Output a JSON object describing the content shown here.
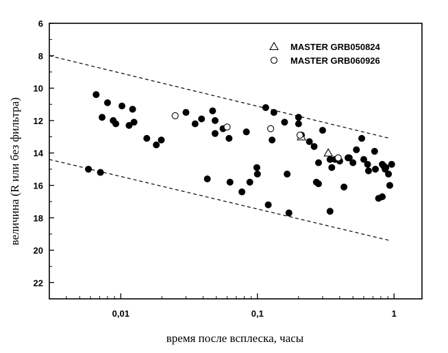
{
  "chart_data": {
    "type": "scatter",
    "title": "",
    "xlabel": "время после всплеска, часы",
    "ylabel": "величина (R или без фильтра)",
    "x_scale": "log",
    "xlim": [
      0.003,
      1.6
    ],
    "ylim": [
      6,
      23
    ],
    "y_inverted": true,
    "y_ticks": [
      6,
      8,
      10,
      12,
      14,
      16,
      18,
      20,
      22
    ],
    "x_ticks": [
      {
        "value": 0.01,
        "label": "0,01"
      },
      {
        "value": 0.1,
        "label": "0,1"
      },
      {
        "value": 1,
        "label": "1"
      }
    ],
    "grid": false,
    "legend_position": "top-right",
    "series": [
      {
        "name": "",
        "marker": "filled-circle",
        "color": "#000000",
        "points": [
          [
            0.0066,
            10.4
          ],
          [
            0.0073,
            11.8
          ],
          [
            0.008,
            10.9
          ],
          [
            0.0088,
            12.0
          ],
          [
            0.0092,
            12.2
          ],
          [
            0.0102,
            11.1
          ],
          [
            0.0115,
            12.3
          ],
          [
            0.0122,
            11.3
          ],
          [
            0.0125,
            12.1
          ],
          [
            0.0155,
            13.1
          ],
          [
            0.0182,
            13.5
          ],
          [
            0.0198,
            13.2
          ],
          [
            0.03,
            11.5
          ],
          [
            0.035,
            12.2
          ],
          [
            0.039,
            11.9
          ],
          [
            0.047,
            11.4
          ],
          [
            0.049,
            12.0
          ],
          [
            0.049,
            12.8
          ],
          [
            0.056,
            12.5
          ],
          [
            0.062,
            13.1
          ],
          [
            0.083,
            12.7
          ],
          [
            0.115,
            11.2
          ],
          [
            0.128,
            13.2
          ],
          [
            0.132,
            11.5
          ],
          [
            0.158,
            12.1
          ],
          [
            0.2,
            11.8
          ],
          [
            0.2,
            12.2
          ],
          [
            0.21,
            12.9
          ],
          [
            0.24,
            13.3
          ],
          [
            0.3,
            12.6
          ],
          [
            0.0058,
            15.0
          ],
          [
            0.0071,
            15.2
          ],
          [
            0.043,
            15.6
          ],
          [
            0.063,
            15.8
          ],
          [
            0.077,
            16.4
          ],
          [
            0.088,
            15.8
          ],
          [
            0.099,
            14.9
          ],
          [
            0.1,
            15.3
          ],
          [
            0.12,
            17.2
          ],
          [
            0.165,
            15.3
          ],
          [
            0.17,
            17.7
          ],
          [
            0.26,
            13.6
          ],
          [
            0.27,
            15.8
          ],
          [
            0.28,
            14.6
          ],
          [
            0.28,
            15.9
          ],
          [
            0.34,
            17.6
          ],
          [
            0.34,
            14.4
          ],
          [
            0.35,
            14.9
          ],
          [
            0.37,
            14.4
          ],
          [
            0.4,
            14.5
          ],
          [
            0.43,
            16.1
          ],
          [
            0.46,
            14.3
          ],
          [
            0.47,
            14.3
          ],
          [
            0.5,
            14.6
          ],
          [
            0.53,
            13.8
          ],
          [
            0.58,
            13.1
          ],
          [
            0.6,
            14.4
          ],
          [
            0.64,
            14.7
          ],
          [
            0.65,
            15.1
          ],
          [
            0.73,
            15.0
          ],
          [
            0.72,
            13.9
          ],
          [
            0.77,
            16.8
          ],
          [
            0.82,
            14.7
          ],
          [
            0.82,
            16.7
          ],
          [
            0.84,
            14.8
          ],
          [
            0.86,
            15.0
          ],
          [
            0.87,
            14.9
          ],
          [
            0.91,
            15.3
          ],
          [
            0.93,
            16.0
          ],
          [
            0.96,
            14.7
          ]
        ]
      },
      {
        "name": "MASTER GRB050824",
        "marker": "open-triangle",
        "color": "#000000",
        "points": [
          [
            0.21,
            13.0
          ],
          [
            0.33,
            14.0
          ]
        ]
      },
      {
        "name": "MASTER GRB060926",
        "marker": "open-circle",
        "color": "#000000",
        "points": [
          [
            0.025,
            11.7
          ],
          [
            0.06,
            12.4
          ],
          [
            0.125,
            12.5
          ],
          [
            0.205,
            12.9
          ],
          [
            0.39,
            14.3
          ]
        ]
      }
    ],
    "bounds": [
      {
        "x": [
          0.003,
          0.93
        ],
        "y": [
          8.0,
          13.1
        ],
        "style": "dashed"
      },
      {
        "x": [
          0.003,
          0.93
        ],
        "y": [
          14.4,
          19.4
        ],
        "style": "dashed"
      }
    ]
  }
}
